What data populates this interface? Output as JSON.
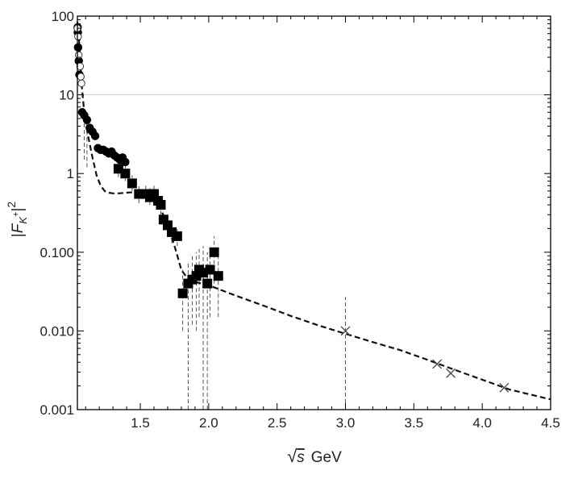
{
  "chart_data": {
    "type": "scatter",
    "title": "",
    "xlabel_radical": "√",
    "xlabel_var": "s",
    "xlabel_unit": "GeV",
    "ylabel_bar_left": "|",
    "ylabel_F": "F",
    "ylabel_sub": "K",
    "ylabel_sup": "+",
    "ylabel_bar_right": "|",
    "ylabel_exp": "2",
    "xlim": [
      1.04,
      4.5
    ],
    "ylim": [
      0.001,
      100
    ],
    "y_scale": "log",
    "x_ticks": [
      "1.5",
      "2.0",
      "2.5",
      "3.0",
      "3.5",
      "4.0",
      "4.5"
    ],
    "y_ticks": [
      "0.001",
      "0.010",
      "0.100",
      "1",
      "10",
      "100"
    ],
    "reference_line_y": 10,
    "series": [
      {
        "marker": "filled-circle",
        "points": [
          {
            "x": 1.042,
            "y": 72
          },
          {
            "x": 1.043,
            "y": 62
          },
          {
            "x": 1.045,
            "y": 40
          },
          {
            "x": 1.05,
            "y": 27
          },
          {
            "x": 1.055,
            "y": 18
          },
          {
            "x": 1.075,
            "y": 6.0
          },
          {
            "x": 1.09,
            "y": 5.5
          },
          {
            "x": 1.11,
            "y": 4.8
          },
          {
            "x": 1.13,
            "y": 3.8
          },
          {
            "x": 1.15,
            "y": 3.4
          },
          {
            "x": 1.17,
            "y": 3.0
          },
          {
            "x": 1.19,
            "y": 2.1
          },
          {
            "x": 1.21,
            "y": 2.0
          },
          {
            "x": 1.23,
            "y": 2.0
          },
          {
            "x": 1.25,
            "y": 1.9
          },
          {
            "x": 1.27,
            "y": 1.8
          },
          {
            "x": 1.29,
            "y": 1.9
          },
          {
            "x": 1.31,
            "y": 1.7
          },
          {
            "x": 1.33,
            "y": 1.6
          },
          {
            "x": 1.35,
            "y": 1.5
          },
          {
            "x": 1.37,
            "y": 1.6
          },
          {
            "x": 1.39,
            "y": 1.4
          }
        ]
      },
      {
        "marker": "open-circle",
        "points": [
          {
            "x": 1.04,
            "y": 70
          },
          {
            "x": 1.045,
            "y": 55
          },
          {
            "x": 1.05,
            "y": 32
          },
          {
            "x": 1.06,
            "y": 23
          },
          {
            "x": 1.065,
            "y": 17
          },
          {
            "x": 1.07,
            "y": 14
          }
        ]
      },
      {
        "marker": "filled-square",
        "points": [
          {
            "x": 1.34,
            "y": 1.15,
            "lo": 0.9,
            "hi": 1.4
          },
          {
            "x": 1.39,
            "y": 1.0,
            "lo": 0.8,
            "hi": 1.25
          },
          {
            "x": 1.44,
            "y": 0.75,
            "lo": 0.6,
            "hi": 0.95
          },
          {
            "x": 1.49,
            "y": 0.55,
            "lo": 0.42,
            "hi": 0.7
          },
          {
            "x": 1.54,
            "y": 0.55,
            "lo": 0.43,
            "hi": 0.7
          },
          {
            "x": 1.57,
            "y": 0.5,
            "lo": 0.4,
            "hi": 0.65
          },
          {
            "x": 1.6,
            "y": 0.55,
            "lo": 0.43,
            "hi": 0.7
          },
          {
            "x": 1.63,
            "y": 0.45,
            "lo": 0.35,
            "hi": 0.58
          },
          {
            "x": 1.65,
            "y": 0.4,
            "lo": 0.3,
            "hi": 0.52
          },
          {
            "x": 1.67,
            "y": 0.26,
            "lo": 0.19,
            "hi": 0.34
          },
          {
            "x": 1.7,
            "y": 0.22,
            "lo": 0.16,
            "hi": 0.29
          },
          {
            "x": 1.73,
            "y": 0.18,
            "lo": 0.13,
            "hi": 0.24
          },
          {
            "x": 1.77,
            "y": 0.16,
            "lo": 0.12,
            "hi": 0.21
          },
          {
            "x": 1.81,
            "y": 0.03,
            "lo": 0.01,
            "hi": 0.06
          },
          {
            "x": 1.85,
            "y": 0.04,
            "lo": 0.001,
            "hi": 0.075
          },
          {
            "x": 1.88,
            "y": 0.045,
            "lo": 0.012,
            "hi": 0.09
          },
          {
            "x": 1.91,
            "y": 0.05,
            "lo": 0.01,
            "hi": 0.1
          },
          {
            "x": 1.93,
            "y": 0.06,
            "lo": 0.015,
            "hi": 0.11
          },
          {
            "x": 1.96,
            "y": 0.055,
            "lo": 0.001,
            "hi": 0.12
          },
          {
            "x": 1.99,
            "y": 0.04,
            "lo": 0.001,
            "hi": 0.1
          },
          {
            "x": 2.01,
            "y": 0.06,
            "lo": 0.015,
            "hi": 0.12
          },
          {
            "x": 2.04,
            "y": 0.1,
            "lo": 0.04,
            "hi": 0.16
          },
          {
            "x": 2.07,
            "y": 0.05,
            "lo": 0.015,
            "hi": 0.09
          }
        ]
      },
      {
        "marker": "cross",
        "points": [
          {
            "x": 3.0,
            "y": 0.01,
            "lo": 0.001,
            "hi": 0.027
          },
          {
            "x": 3.67,
            "y": 0.0038
          },
          {
            "x": 3.77,
            "y": 0.0029
          },
          {
            "x": 4.16,
            "y": 0.0019
          }
        ]
      }
    ],
    "extra_error_bars": [
      {
        "x": 1.09,
        "lo": 1.5,
        "hi": 6.5
      },
      {
        "x": 1.11,
        "lo": 1.2,
        "hi": 5.5
      }
    ],
    "fit_curve": {
      "style": "dashed",
      "points": [
        [
          1.04,
          85
        ],
        [
          1.05,
          55
        ],
        [
          1.06,
          30
        ],
        [
          1.07,
          14
        ],
        [
          1.09,
          6.0
        ],
        [
          1.12,
          2.9
        ],
        [
          1.15,
          1.6
        ],
        [
          1.18,
          0.95
        ],
        [
          1.21,
          0.7
        ],
        [
          1.24,
          0.6
        ],
        [
          1.27,
          0.57
        ],
        [
          1.3,
          0.56
        ],
        [
          1.34,
          0.56
        ],
        [
          1.4,
          0.57
        ],
        [
          1.45,
          0.58
        ],
        [
          1.5,
          0.57
        ],
        [
          1.55,
          0.52
        ],
        [
          1.6,
          0.45
        ],
        [
          1.65,
          0.35
        ],
        [
          1.7,
          0.22
        ],
        [
          1.75,
          0.12
        ],
        [
          1.8,
          0.06
        ],
        [
          1.85,
          0.045
        ],
        [
          1.9,
          0.042
        ],
        [
          2.0,
          0.038
        ],
        [
          2.2,
          0.028
        ],
        [
          2.4,
          0.021
        ],
        [
          2.6,
          0.0155
        ],
        [
          2.8,
          0.0118
        ],
        [
          3.0,
          0.0092
        ],
        [
          3.2,
          0.0072
        ],
        [
          3.4,
          0.0057
        ],
        [
          3.6,
          0.0043
        ],
        [
          3.8,
          0.0032
        ],
        [
          4.0,
          0.0024
        ],
        [
          4.2,
          0.0018
        ],
        [
          4.5,
          0.00135
        ]
      ]
    }
  }
}
